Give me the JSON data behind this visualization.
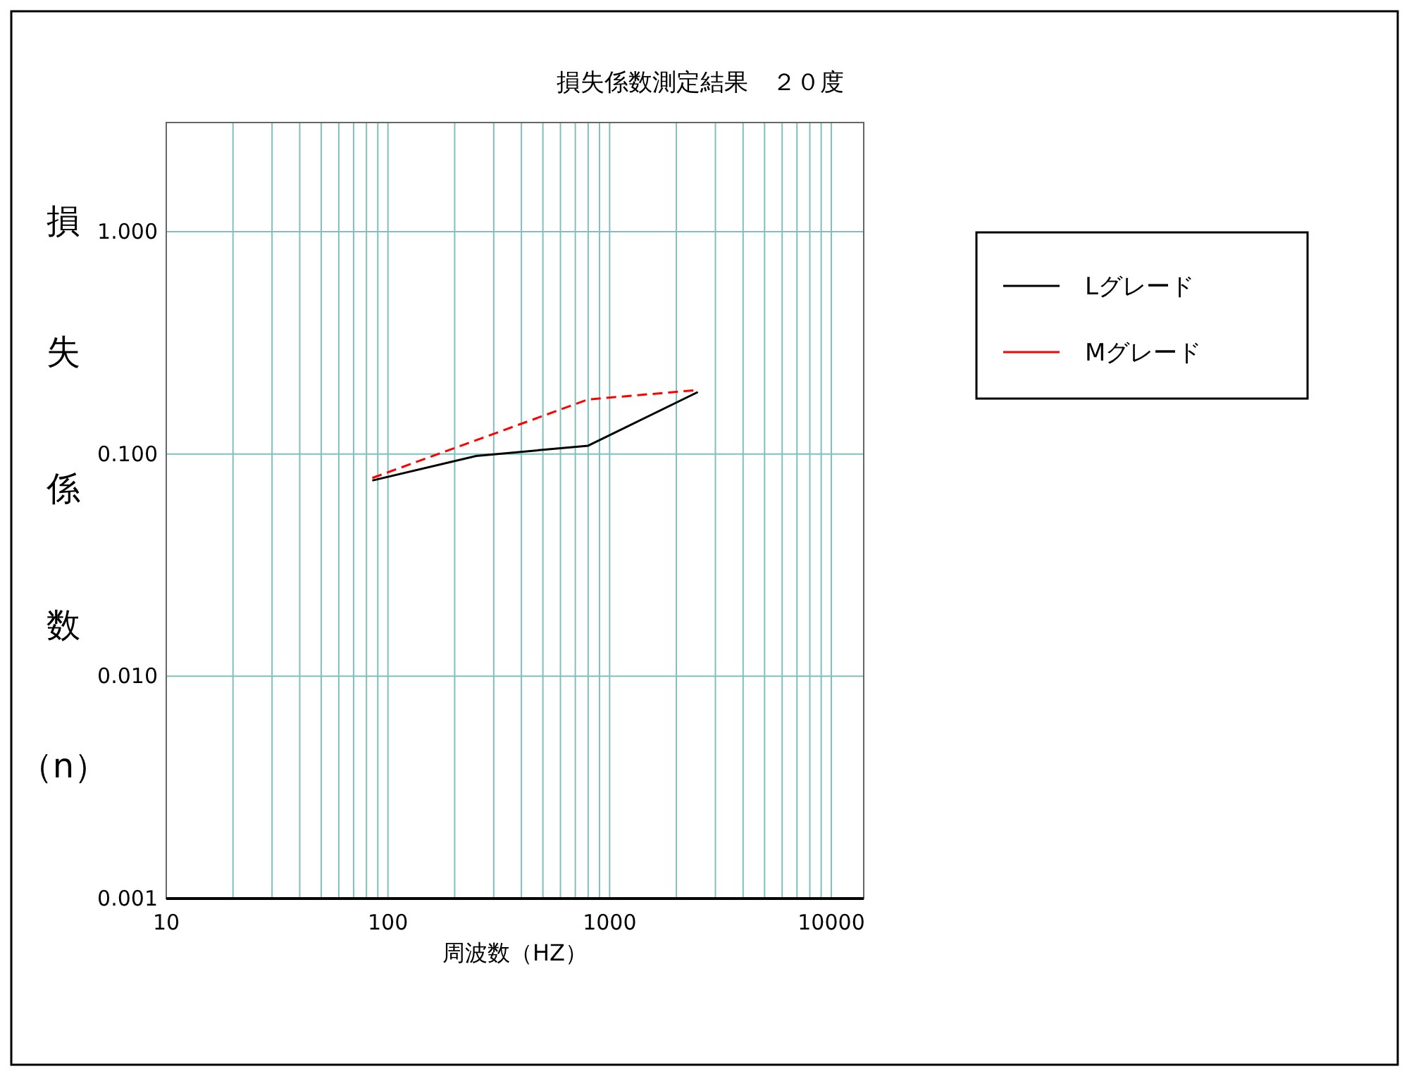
{
  "chart_data": {
    "type": "line",
    "title": "損失係数測定結果　２０度",
    "xlabel": "周波数（HZ）",
    "ylabel": "損失係数（n）",
    "log": "xy",
    "grid": true,
    "legend": "right",
    "marker": "none",
    "xlim": [
      10,
      14000
    ],
    "ylim": [
      0.001,
      3.1
    ],
    "xticks": [
      10,
      {
        "value": 20,
        "label": null
      },
      {
        "value": 30,
        "label": null
      },
      {
        "value": 40,
        "label": null
      },
      {
        "value": 50,
        "label": null
      },
      {
        "value": 60,
        "label": null
      },
      {
        "value": 70,
        "label": null
      },
      {
        "value": 80,
        "label": null
      },
      {
        "value": 90,
        "label": null
      },
      100,
      {
        "value": 200,
        "label": null
      },
      {
        "value": 300,
        "label": null
      },
      {
        "value": 400,
        "label": null
      },
      {
        "value": 500,
        "label": null
      },
      {
        "value": 600,
        "label": null
      },
      {
        "value": 700,
        "label": null
      },
      {
        "value": 800,
        "label": null
      },
      {
        "value": 900,
        "label": null
      },
      1000,
      {
        "value": 2000,
        "label": null
      },
      {
        "value": 3000,
        "label": null
      },
      {
        "value": 4000,
        "label": null
      },
      {
        "value": 5000,
        "label": null
      },
      {
        "value": 6000,
        "label": null
      },
      {
        "value": 7000,
        "label": null
      },
      {
        "value": 8000,
        "label": null
      },
      {
        "value": 9000,
        "label": null
      },
      10000
    ],
    "yticks": [
      {
        "value": 0.001,
        "label": "0.001"
      },
      {
        "value": 0.01,
        "label": "0.010"
      },
      {
        "value": 0.1,
        "label": "0.100"
      },
      {
        "value": 1,
        "label": "1.000"
      }
    ],
    "series": [
      {
        "name": "Lグレード",
        "color": "#000000",
        "line_style": "solid",
        "x": [
          85,
          250,
          800,
          2500
        ],
        "values": [
          0.076,
          0.098,
          0.109,
          0.19
        ]
      },
      {
        "name": "Mグレード",
        "color": "#ff0000",
        "line_style": "dashed",
        "x": [
          85,
          800,
          2500
        ],
        "values": [
          0.078,
          0.176,
          0.194
        ]
      }
    ]
  }
}
